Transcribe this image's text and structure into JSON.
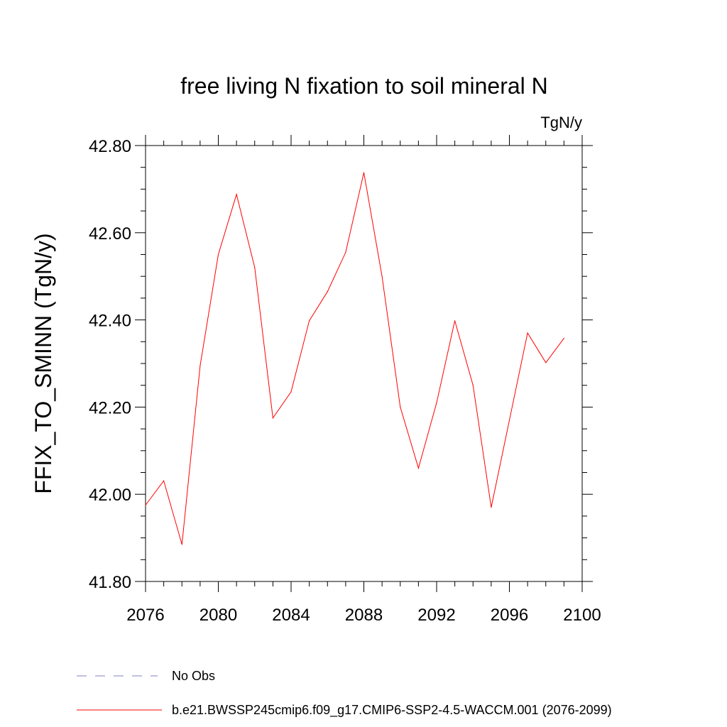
{
  "chart_data": {
    "type": "line",
    "title": "free living N fixation to soil mineral N",
    "units": "TgN/y",
    "ylabel": "FFIX_TO_SMINN  (TgN/y)",
    "xlabel": "",
    "xlim": [
      2076,
      2100
    ],
    "ylim": [
      41.8,
      42.8
    ],
    "xticks": [
      "2076",
      "2080",
      "2084",
      "2088",
      "2092",
      "2096",
      "2100"
    ],
    "yticks": [
      "41.80",
      "42.00",
      "42.20",
      "42.40",
      "42.60",
      "42.80"
    ],
    "grid": false,
    "legend_position": "bottom-left",
    "series": [
      {
        "name": "b.e21.BWSSP245cmip6.f09_g17.CMIP6-SSP2-4.5-WACCM.001 (2076-2099)",
        "color": "#ff0000",
        "style": "solid",
        "x": [
          2076,
          2077,
          2078,
          2079,
          2080,
          2081,
          2082,
          2083,
          2084,
          2085,
          2086,
          2087,
          2088,
          2089,
          2090,
          2091,
          2092,
          2093,
          2094,
          2095,
          2096,
          2097,
          2098,
          2099
        ],
        "y": [
          41.975,
          42.031,
          41.885,
          42.295,
          42.55,
          42.688,
          42.52,
          42.175,
          42.235,
          42.398,
          42.465,
          42.555,
          42.738,
          42.5,
          42.2,
          42.06,
          42.21,
          42.398,
          42.25,
          41.97,
          42.17,
          42.37,
          42.302,
          42.358
        ]
      }
    ],
    "obs": {
      "name": "No Obs",
      "color": "#8080c0",
      "style": "dashed"
    }
  }
}
